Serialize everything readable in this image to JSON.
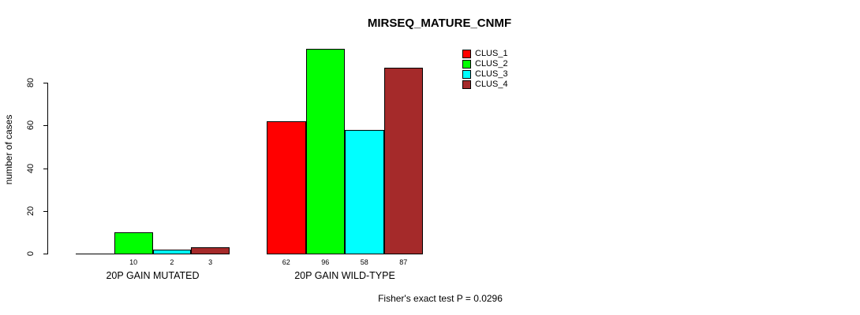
{
  "title": "MIRSEQ_MATURE_CNMF",
  "y_axis": {
    "label": "number of cases",
    "ticks": [
      0,
      20,
      40,
      60,
      80
    ]
  },
  "legend": {
    "items": [
      {
        "label": "CLUS_1",
        "color": "#FF0000"
      },
      {
        "label": "CLUS_2",
        "color": "#00FF00"
      },
      {
        "label": "CLUS_3",
        "color": "#00FFFF"
      },
      {
        "label": "CLUS_4",
        "color": "#A52A2A"
      }
    ]
  },
  "footer": "Fisher's exact test P = 0.0296",
  "chart_data": {
    "type": "bar",
    "title": "MIRSEQ_MATURE_CNMF",
    "xlabel": "",
    "ylabel": "number of cases",
    "ylim": [
      0,
      100
    ],
    "yticks": [
      0,
      20,
      40,
      60,
      80
    ],
    "grid": false,
    "legend_position": "top-right",
    "categories": [
      "20P GAIN MUTATED",
      "20P GAIN WILD-TYPE"
    ],
    "series": [
      {
        "name": "CLUS_1",
        "color": "#FF0000",
        "values": [
          0,
          62
        ]
      },
      {
        "name": "CLUS_2",
        "color": "#00FF00",
        "values": [
          10,
          96
        ]
      },
      {
        "name": "CLUS_3",
        "color": "#00FFFF",
        "values": [
          2,
          58
        ]
      },
      {
        "name": "CLUS_4",
        "color": "#A52A2A",
        "values": [
          3,
          87
        ]
      }
    ],
    "bar_value_labels_shown": true,
    "zero_value_bars_have_no_label": true,
    "annotation": "Fisher's exact test P = 0.0296"
  }
}
